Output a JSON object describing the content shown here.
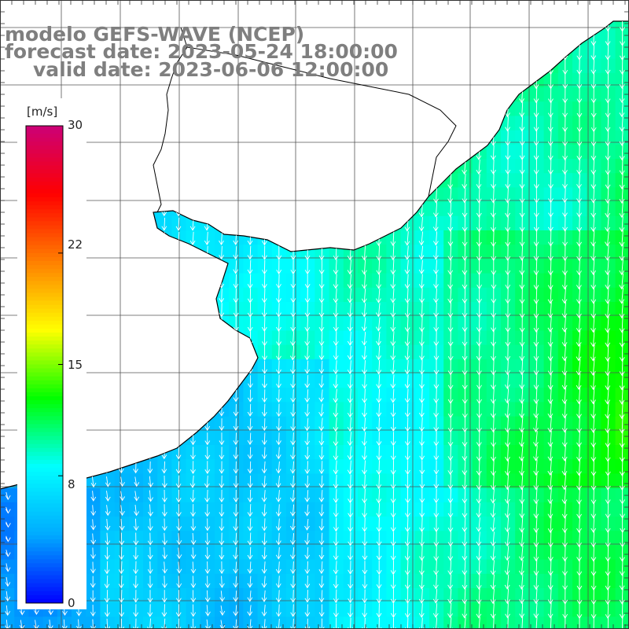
{
  "title": {
    "line1": "modelo GEFS-WAVE (NCEP)",
    "line2": "forecast date: 2023-05-24 18:00:00",
    "line3": "valid date: 2023-06-06 12:00:00"
  },
  "colorbar": {
    "unit": "[m/s]",
    "min": 0,
    "max": 30,
    "ticks": [
      30,
      22,
      15,
      8,
      0
    ],
    "colors": [
      "#0000ff",
      "#00aaff",
      "#00ffff",
      "#00ff00",
      "#ffff00",
      "#ff8000",
      "#ff0000",
      "#cc0077"
    ]
  },
  "map": {
    "variable": "wind speed",
    "dominant_range_m_s": [
      5,
      13
    ],
    "grid_lines": "on",
    "land_color": "#ffffff",
    "coastline_color": "#000000",
    "vector_color": "#ffffff"
  }
}
